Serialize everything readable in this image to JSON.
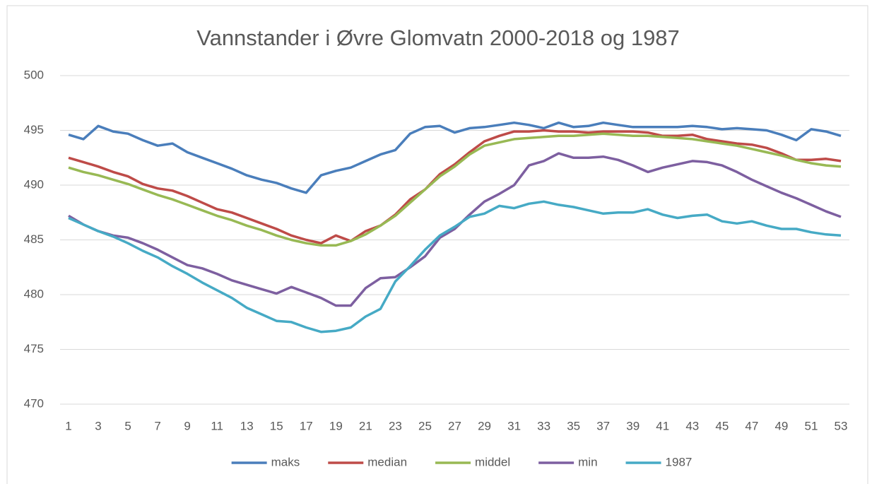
{
  "chart_data": {
    "type": "line",
    "title": "Vannstander i Øvre Glomvatn 2000-2018 og 1987",
    "categories": [
      1,
      null,
      3,
      null,
      5,
      null,
      7,
      null,
      9,
      null,
      11,
      null,
      13,
      null,
      15,
      null,
      17,
      null,
      19,
      null,
      21,
      null,
      23,
      null,
      25,
      null,
      27,
      null,
      29,
      null,
      31,
      null,
      33,
      null,
      35,
      null,
      37,
      null,
      39,
      null,
      41,
      null,
      43,
      null,
      45,
      null,
      47,
      null,
      49,
      null,
      51,
      null,
      53
    ],
    "ylim": [
      470,
      500
    ],
    "yticks": [
      470,
      475,
      480,
      485,
      490,
      495,
      500
    ],
    "grid": true,
    "legend": "bottom",
    "series": [
      {
        "name": "maks",
        "color": "#4a7ebb",
        "values": [
          494.6,
          494.2,
          495.4,
          494.9,
          494.7,
          494.1,
          493.6,
          493.8,
          493.0,
          492.5,
          492.0,
          491.5,
          490.9,
          490.5,
          490.2,
          489.7,
          489.3,
          490.9,
          491.3,
          491.6,
          492.2,
          492.8,
          493.2,
          494.7,
          495.3,
          495.4,
          494.8,
          495.2,
          495.3,
          495.5,
          495.7,
          495.5,
          495.2,
          495.7,
          495.3,
          495.4,
          495.7,
          495.5,
          495.3,
          495.3,
          495.3,
          495.3,
          495.4,
          495.3,
          495.1,
          495.2,
          495.1,
          495.0,
          494.6,
          494.1,
          495.1,
          494.9,
          494.5
        ]
      },
      {
        "name": "median",
        "color": "#be4b48",
        "values": [
          492.5,
          492.1,
          491.7,
          491.2,
          490.8,
          490.1,
          489.7,
          489.5,
          489.0,
          488.4,
          487.8,
          487.5,
          487.0,
          486.5,
          486.0,
          485.4,
          485.0,
          484.7,
          485.4,
          484.9,
          485.8,
          486.3,
          487.3,
          488.7,
          489.6,
          491.0,
          491.9,
          493.0,
          494.0,
          494.5,
          494.9,
          494.9,
          495.0,
          494.9,
          494.9,
          494.8,
          494.9,
          494.9,
          494.9,
          494.8,
          494.5,
          494.5,
          494.6,
          494.2,
          494.0,
          493.8,
          493.7,
          493.4,
          492.9,
          492.3,
          492.3,
          492.4,
          492.2
        ]
      },
      {
        "name": "middel",
        "color": "#98b954",
        "values": [
          491.6,
          491.2,
          490.9,
          490.5,
          490.1,
          489.6,
          489.1,
          488.7,
          488.2,
          487.7,
          487.2,
          486.8,
          486.3,
          485.9,
          485.4,
          485.0,
          484.7,
          484.5,
          484.5,
          484.9,
          485.5,
          486.3,
          487.2,
          488.4,
          489.6,
          490.8,
          491.7,
          492.8,
          493.6,
          493.9,
          494.2,
          494.3,
          494.4,
          494.5,
          494.5,
          494.6,
          494.7,
          494.6,
          494.5,
          494.5,
          494.4,
          494.3,
          494.2,
          494.0,
          493.8,
          493.6,
          493.3,
          493.0,
          492.7,
          492.3,
          492.0,
          491.8,
          491.7
        ]
      },
      {
        "name": "min",
        "color": "#7d5fa0",
        "values": [
          487.2,
          486.4,
          485.8,
          485.4,
          485.2,
          484.7,
          484.1,
          483.4,
          482.7,
          482.4,
          481.9,
          481.3,
          480.9,
          480.5,
          480.1,
          480.7,
          480.2,
          479.7,
          479.0,
          479.0,
          480.6,
          481.5,
          481.6,
          482.5,
          483.5,
          485.2,
          486.0,
          487.3,
          488.5,
          489.2,
          490.0,
          491.8,
          492.2,
          492.9,
          492.5,
          492.5,
          492.6,
          492.3,
          491.8,
          491.2,
          491.6,
          491.9,
          492.2,
          492.1,
          491.8,
          491.2,
          490.5,
          489.9,
          489.3,
          488.8,
          488.2,
          487.6,
          487.1
        ]
      },
      {
        "name": "1987",
        "color": "#46aac5",
        "values": [
          487.0,
          486.4,
          485.8,
          485.3,
          484.7,
          484.0,
          483.4,
          482.6,
          481.9,
          481.1,
          480.4,
          479.7,
          478.8,
          478.2,
          477.6,
          477.5,
          477.0,
          476.6,
          476.7,
          477.0,
          478.0,
          478.7,
          481.2,
          482.6,
          484.1,
          485.4,
          486.2,
          487.1,
          487.4,
          488.1,
          487.9,
          488.3,
          488.5,
          488.2,
          488.0,
          487.7,
          487.4,
          487.5,
          487.5,
          487.8,
          487.3,
          487.0,
          487.2,
          487.3,
          486.7,
          486.5,
          486.7,
          486.3,
          486.0,
          486.0,
          485.7,
          485.5,
          485.4
        ]
      }
    ]
  }
}
